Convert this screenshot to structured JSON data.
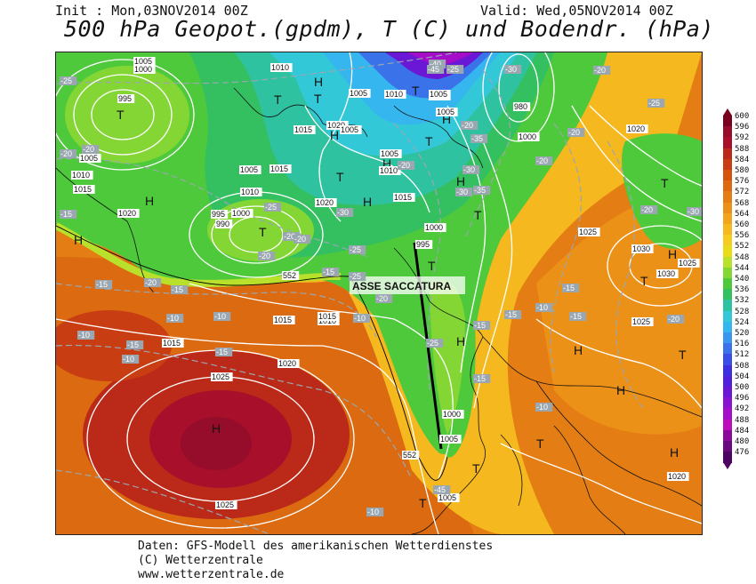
{
  "header": {
    "init": "Init : Mon,03NOV2014 00Z",
    "valid": "Valid: Wed,05NOV2014 00Z",
    "title": "500 hPa Geopot.(gpdm), T (C) und Bodendr. (hPa)"
  },
  "annotation": "ASSE SACCATURA",
  "pressure_labels": [
    "1005",
    "1000",
    "995",
    "1010",
    "1005",
    "1010",
    "1005",
    "980",
    "1000",
    "1015",
    "1020",
    "1005",
    "1005",
    "1010",
    "1015",
    "1020",
    "995",
    "990",
    "1000",
    "1005",
    "1010",
    "1015",
    "1020",
    "1025",
    "1025",
    "1030",
    "1030",
    "1025",
    "1005",
    "995",
    "1000",
    "1005",
    "1005",
    "1015",
    "1020",
    "1025",
    "1020",
    "1010",
    "1015",
    "1000",
    "1020",
    "1005",
    "1005",
    "1010",
    "1015",
    "1015",
    "1025"
  ],
  "temp_labels": [
    "-25",
    "-20",
    "-15",
    "-20",
    "-15",
    "-10",
    "-10",
    "-15",
    "-10",
    "-20",
    "-15",
    "-25",
    "-20",
    "-30",
    "-25",
    "-20",
    "-20",
    "-15",
    "-10",
    "-10",
    "-15",
    "-20",
    "-25",
    "-30",
    "-35",
    "-40",
    "-45",
    "-30",
    "-35",
    "-30",
    "-25",
    "-20",
    "-15",
    "-10",
    "-20",
    "-15",
    "-15",
    "-20",
    "-20",
    "-15",
    "-10",
    "-45",
    "-20",
    "-25",
    "-20",
    "-25",
    "-30",
    "-20",
    "-15",
    "-10"
  ],
  "geopot_labels": [
    "552",
    "552"
  ],
  "colorbar": {
    "ticks": [
      "600",
      "596",
      "592",
      "588",
      "584",
      "580",
      "576",
      "572",
      "568",
      "564",
      "560",
      "556",
      "552",
      "548",
      "544",
      "540",
      "536",
      "532",
      "528",
      "524",
      "520",
      "516",
      "512",
      "508",
      "504",
      "500",
      "496",
      "492",
      "488",
      "484",
      "480",
      "476"
    ],
    "colors": [
      "#7a0020",
      "#950d2a",
      "#a80f2a",
      "#bb2a18",
      "#c93d12",
      "#d2540e",
      "#db6a10",
      "#e47e14",
      "#ec9118",
      "#f2a51c",
      "#f5b81e",
      "#f7cc20",
      "#e8dc18",
      "#b9e02a",
      "#84d634",
      "#4fc93c",
      "#34c060",
      "#2fc2a0",
      "#33c8d8",
      "#36b6ee",
      "#3a96ee",
      "#3a72ea",
      "#3a4ee6",
      "#3d2ee0",
      "#5220dc",
      "#6a18d6",
      "#8814d0",
      "#a40ec8",
      "#bd0cbc",
      "#8a0a9a",
      "#6a0880",
      "#4e0462"
    ]
  },
  "symbols": {
    "H": "H",
    "T": "T"
  },
  "footer": {
    "line1": "Daten: GFS-Modell des amerikanischen Wetterdienstes",
    "line2": "(C) Wetterzentrale",
    "line3": "www.wetterzentrale.de"
  }
}
